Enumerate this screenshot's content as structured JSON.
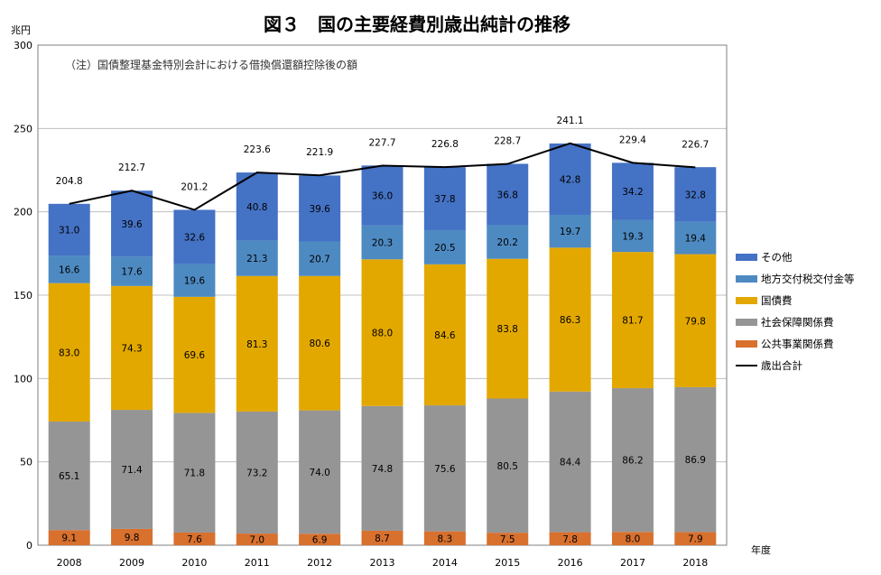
{
  "chart_data": {
    "type": "bar",
    "stacked": true,
    "title": "図３　国の主要経費別歳出純計の推移",
    "ylabel": "兆円",
    "xlabel": "年度",
    "note": "（注）国債整理基金特別会計における借換償還額控除後の額",
    "ylim": [
      0,
      300
    ],
    "yticks": [
      0,
      50,
      100,
      150,
      200,
      250,
      300
    ],
    "grid": true,
    "legend_position": "right",
    "categories": [
      "2008",
      "2009",
      "2010",
      "2011",
      "2012",
      "2013",
      "2014",
      "2015",
      "2016",
      "2017",
      "2018"
    ],
    "series": [
      {
        "name": "公共事業関係費",
        "color": "#D8702E",
        "values": [
          9.1,
          9.8,
          7.6,
          7.0,
          6.9,
          8.7,
          8.3,
          7.5,
          7.8,
          8.0,
          7.9
        ]
      },
      {
        "name": "社会保障関係費",
        "color": "#959595",
        "values": [
          65.1,
          71.4,
          71.8,
          73.2,
          74.0,
          74.8,
          75.6,
          80.5,
          84.4,
          86.2,
          86.9
        ]
      },
      {
        "name": "国債費",
        "color": "#E3A800",
        "values": [
          83.0,
          74.3,
          69.6,
          81.3,
          80.6,
          88.0,
          84.6,
          83.8,
          86.3,
          81.7,
          79.8
        ]
      },
      {
        "name": "地方交付税交付金等",
        "color": "#4E8AC2",
        "values": [
          16.6,
          17.6,
          19.6,
          21.3,
          20.7,
          20.3,
          20.5,
          20.2,
          19.7,
          19.3,
          19.4
        ]
      },
      {
        "name": "その他",
        "color": "#4472C4",
        "values": [
          31.0,
          39.6,
          32.6,
          40.8,
          39.6,
          36.0,
          37.8,
          36.8,
          42.8,
          34.2,
          32.8
        ]
      }
    ],
    "total_line": {
      "name": "歳出合計",
      "color": "#000000",
      "values": [
        204.8,
        212.7,
        201.2,
        223.6,
        221.9,
        227.7,
        226.8,
        228.7,
        241.1,
        229.4,
        226.7
      ]
    },
    "legend_order": [
      "その他",
      "地方交付税交付金等",
      "国債費",
      "社会保障関係費",
      "公共事業関係費",
      "歳出合計"
    ]
  }
}
